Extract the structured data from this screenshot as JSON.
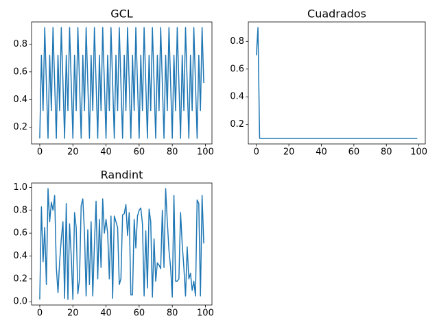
{
  "chart_data": [
    {
      "type": "line",
      "title": "GCL",
      "color": "#1f77b4",
      "x": [
        0,
        1,
        2,
        3,
        4,
        5,
        6,
        7,
        8,
        9,
        10,
        11,
        12,
        13,
        14,
        15,
        16,
        17,
        18,
        19,
        20,
        21,
        22,
        23,
        24,
        25,
        26,
        27,
        28,
        29,
        30,
        31,
        32,
        33,
        34,
        35,
        36,
        37,
        38,
        39,
        40,
        41,
        42,
        43,
        44,
        45,
        46,
        47,
        48,
        49,
        50,
        51,
        52,
        53,
        54,
        55,
        56,
        57,
        58,
        59,
        60,
        61,
        62,
        63,
        64,
        65,
        66,
        67,
        68,
        69,
        70,
        71,
        72,
        73,
        74,
        75,
        76,
        77,
        78,
        79,
        80,
        81,
        82,
        83,
        84,
        85,
        86,
        87,
        88,
        89,
        90,
        91,
        92,
        93,
        94,
        95,
        96,
        97,
        98,
        99
      ],
      "values": [
        0.12,
        0.72,
        0.32,
        0.92,
        0.52,
        0.12,
        0.72,
        0.32,
        0.92,
        0.52,
        0.12,
        0.72,
        0.32,
        0.92,
        0.52,
        0.12,
        0.72,
        0.32,
        0.92,
        0.52,
        0.12,
        0.72,
        0.32,
        0.92,
        0.52,
        0.12,
        0.72,
        0.32,
        0.92,
        0.52,
        0.12,
        0.72,
        0.32,
        0.92,
        0.52,
        0.12,
        0.72,
        0.32,
        0.92,
        0.52,
        0.12,
        0.72,
        0.32,
        0.92,
        0.52,
        0.12,
        0.72,
        0.32,
        0.92,
        0.52,
        0.12,
        0.72,
        0.32,
        0.92,
        0.52,
        0.12,
        0.72,
        0.32,
        0.92,
        0.52,
        0.12,
        0.72,
        0.32,
        0.92,
        0.52,
        0.12,
        0.72,
        0.32,
        0.92,
        0.52,
        0.12,
        0.72,
        0.32,
        0.92,
        0.52,
        0.12,
        0.72,
        0.32,
        0.92,
        0.52,
        0.12,
        0.72,
        0.32,
        0.92,
        0.52,
        0.12,
        0.72,
        0.32,
        0.92,
        0.52,
        0.12,
        0.72,
        0.32,
        0.92,
        0.52,
        0.12,
        0.72,
        0.32,
        0.92,
        0.52
      ],
      "xlim": [
        -4.95,
        103.95
      ],
      "xticks": [
        0,
        20,
        40,
        60,
        80,
        100
      ],
      "ylim": [
        0.08,
        0.96
      ],
      "yticks": [
        0.2,
        0.4,
        0.6,
        0.8
      ]
    },
    {
      "type": "line",
      "title": "Cuadrados",
      "color": "#1f77b4",
      "x": [
        0,
        1,
        2,
        3,
        4,
        5,
        6,
        7,
        8,
        9,
        10,
        11,
        12,
        13,
        14,
        15,
        16,
        17,
        18,
        19,
        20,
        21,
        22,
        23,
        24,
        25,
        26,
        27,
        28,
        29,
        30,
        31,
        32,
        33,
        34,
        35,
        36,
        37,
        38,
        39,
        40,
        41,
        42,
        43,
        44,
        45,
        46,
        47,
        48,
        49,
        50,
        51,
        52,
        53,
        54,
        55,
        56,
        57,
        58,
        59,
        60,
        61,
        62,
        63,
        64,
        65,
        66,
        67,
        68,
        69,
        70,
        71,
        72,
        73,
        74,
        75,
        76,
        77,
        78,
        79,
        80,
        81,
        82,
        83,
        84,
        85,
        86,
        87,
        88,
        89,
        90,
        91,
        92,
        93,
        94,
        95,
        96,
        97,
        98,
        99
      ],
      "values": [
        0.7,
        0.9,
        0.1,
        0.1,
        0.1,
        0.1,
        0.1,
        0.1,
        0.1,
        0.1,
        0.1,
        0.1,
        0.1,
        0.1,
        0.1,
        0.1,
        0.1,
        0.1,
        0.1,
        0.1,
        0.1,
        0.1,
        0.1,
        0.1,
        0.1,
        0.1,
        0.1,
        0.1,
        0.1,
        0.1,
        0.1,
        0.1,
        0.1,
        0.1,
        0.1,
        0.1,
        0.1,
        0.1,
        0.1,
        0.1,
        0.1,
        0.1,
        0.1,
        0.1,
        0.1,
        0.1,
        0.1,
        0.1,
        0.1,
        0.1,
        0.1,
        0.1,
        0.1,
        0.1,
        0.1,
        0.1,
        0.1,
        0.1,
        0.1,
        0.1,
        0.1,
        0.1,
        0.1,
        0.1,
        0.1,
        0.1,
        0.1,
        0.1,
        0.1,
        0.1,
        0.1,
        0.1,
        0.1,
        0.1,
        0.1,
        0.1,
        0.1,
        0.1,
        0.1,
        0.1,
        0.1,
        0.1,
        0.1,
        0.1,
        0.1,
        0.1,
        0.1,
        0.1,
        0.1,
        0.1,
        0.1,
        0.1,
        0.1,
        0.1,
        0.1,
        0.1,
        0.1,
        0.1,
        0.1,
        0.1
      ],
      "xlim": [
        -4.95,
        103.95
      ],
      "xticks": [
        0,
        20,
        40,
        60,
        80,
        100
      ],
      "ylim": [
        0.06,
        0.94
      ],
      "yticks": [
        0.2,
        0.4,
        0.6,
        0.8
      ]
    },
    {
      "type": "line",
      "title": "Randint",
      "color": "#1f77b4",
      "x": [
        0,
        1,
        2,
        3,
        4,
        5,
        6,
        7,
        8,
        9,
        10,
        11,
        12,
        13,
        14,
        15,
        16,
        17,
        18,
        19,
        20,
        21,
        22,
        23,
        24,
        25,
        26,
        27,
        28,
        29,
        30,
        31,
        32,
        33,
        34,
        35,
        36,
        37,
        38,
        39,
        40,
        41,
        42,
        43,
        44,
        45,
        46,
        47,
        48,
        49,
        50,
        51,
        52,
        53,
        54,
        55,
        56,
        57,
        58,
        59,
        60,
        61,
        62,
        63,
        64,
        65,
        66,
        67,
        68,
        69,
        70,
        71,
        72,
        73,
        74,
        75,
        76,
        77,
        78,
        79,
        80,
        81,
        82,
        83,
        84,
        85,
        86,
        87,
        88,
        89,
        90,
        91,
        92,
        93,
        94,
        95,
        96,
        97,
        98,
        99
      ],
      "values": [
        0.02,
        0.83,
        0.35,
        0.65,
        0.15,
        0.99,
        0.7,
        0.87,
        0.8,
        0.93,
        0.3,
        0.08,
        0.35,
        0.55,
        0.7,
        0.03,
        0.86,
        0.02,
        0.68,
        0.4,
        0.02,
        0.78,
        0.65,
        0.07,
        0.2,
        0.84,
        0.9,
        0.6,
        0.05,
        0.63,
        0.15,
        0.7,
        0.05,
        0.5,
        0.88,
        0.2,
        0.72,
        0.3,
        0.9,
        0.6,
        0.72,
        0.6,
        0.2,
        0.75,
        0.03,
        0.75,
        0.7,
        0.65,
        0.15,
        0.2,
        0.76,
        0.77,
        0.85,
        0.58,
        0.78,
        0.06,
        0.06,
        0.72,
        0.47,
        0.75,
        0.8,
        0.82,
        0.68,
        0.05,
        0.62,
        0.12,
        0.81,
        0.7,
        0.04,
        0.55,
        0.18,
        0.34,
        0.32,
        0.29,
        0.8,
        0.3,
        0.99,
        0.7,
        0.45,
        0.3,
        0.04,
        0.93,
        0.18,
        0.18,
        0.2,
        0.78,
        0.5,
        0.3,
        0.05,
        0.48,
        0.2,
        0.25,
        0.1,
        0.18,
        0.05,
        0.89,
        0.86,
        0.05,
        0.93,
        0.51
      ],
      "xlim": [
        -4.95,
        103.95
      ],
      "xticks": [
        0,
        20,
        40,
        60,
        80,
        100
      ],
      "ylim": [
        -0.0285,
        1.0385
      ],
      "yticks": [
        {
          "value": 0,
          "label": "0.0"
        },
        0.2,
        0.4,
        0.6,
        0.8,
        {
          "value": 1,
          "label": "1.0"
        }
      ]
    }
  ]
}
